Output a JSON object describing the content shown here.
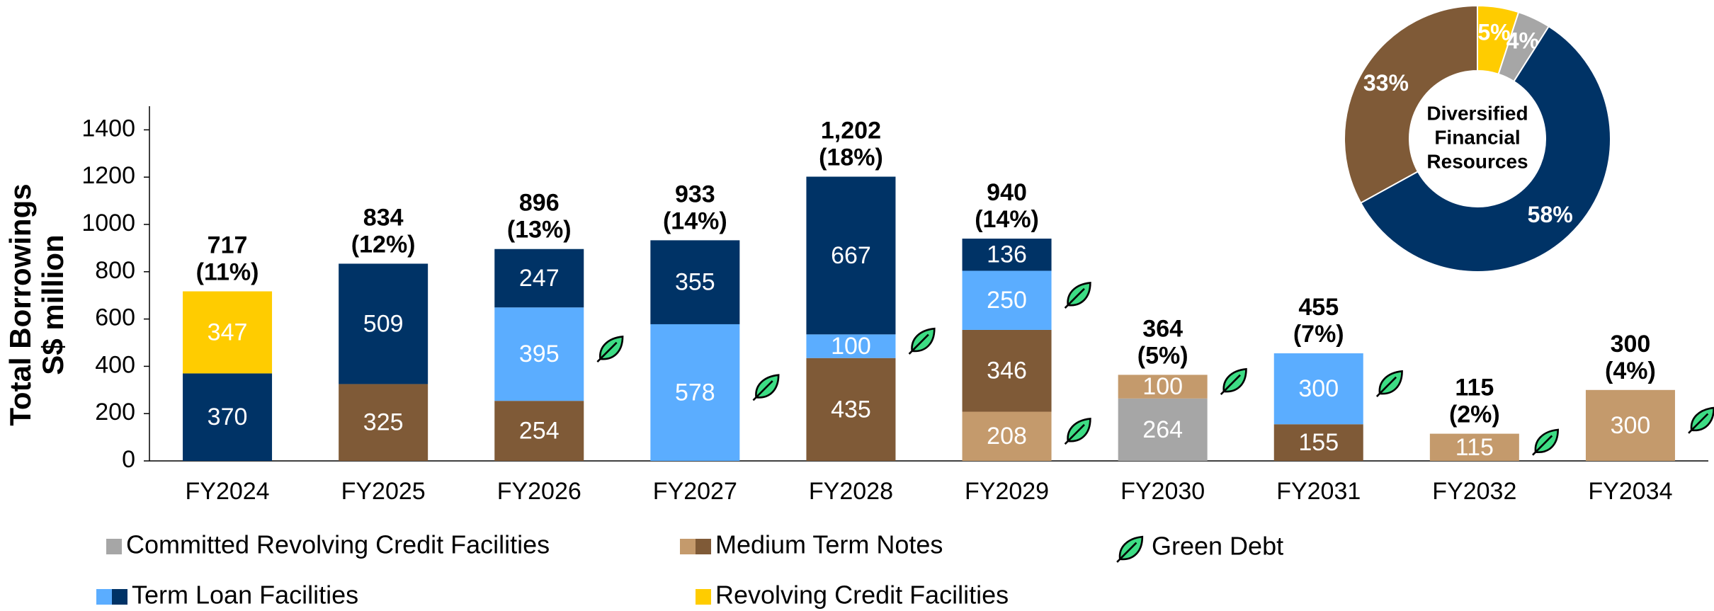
{
  "chart_data": [
    {
      "type": "stacked_bar",
      "ylabel": [
        "Total Borrowings",
        "S$ million"
      ],
      "categories": [
        "FY2024",
        "FY2025",
        "FY2026",
        "FY2027",
        "FY2028",
        "FY2029",
        "FY2030",
        "FY2031",
        "FY2032",
        "FY2034"
      ],
      "series": [
        {
          "name": "Committed Revolving Credit Facilities",
          "parts": [
            {
              "color": "#a6a6a6",
              "values": [
                null,
                null,
                null,
                null,
                null,
                null,
                264,
                null,
                null,
                null
              ],
              "green": [
                false,
                false,
                false,
                false,
                false,
                false,
                false,
                false,
                false,
                false
              ]
            }
          ]
        },
        {
          "name": "Medium Term Notes",
          "parts": [
            {
              "color": "#c49a6c",
              "values": [
                null,
                null,
                null,
                null,
                null,
                208,
                100,
                null,
                115,
                300
              ],
              "green": [
                false,
                false,
                false,
                false,
                false,
                true,
                true,
                false,
                true,
                true
              ]
            },
            {
              "color": "#7f5a37",
              "values": [
                null,
                325,
                254,
                null,
                435,
                346,
                null,
                155,
                null,
                null
              ],
              "green": [
                false,
                false,
                false,
                false,
                false,
                false,
                false,
                false,
                false,
                false
              ]
            }
          ]
        },
        {
          "name": "Term Loan Facilities",
          "parts": [
            {
              "color": "#5badff",
              "values": [
                null,
                null,
                395,
                578,
                100,
                250,
                null,
                300,
                null,
                null
              ],
              "green": [
                false,
                false,
                true,
                true,
                true,
                true,
                false,
                true,
                false,
                false
              ]
            },
            {
              "color": "#003366",
              "values": [
                370,
                509,
                247,
                355,
                667,
                136,
                null,
                null,
                null,
                null
              ],
              "green": [
                false,
                false,
                false,
                false,
                false,
                false,
                false,
                false,
                false,
                false
              ]
            }
          ]
        },
        {
          "name": "Revolving Credit Facilities",
          "parts": [
            {
              "color": "#ffcc00",
              "values": [
                347,
                null,
                null,
                null,
                null,
                null,
                null,
                null,
                null,
                null
              ],
              "green": [
                false,
                false,
                false,
                false,
                false,
                false,
                false,
                false,
                false,
                false
              ]
            }
          ]
        }
      ],
      "green_label": "Green Debt",
      "totals": [
        717,
        834,
        896,
        933,
        1202,
        940,
        364,
        455,
        115,
        300
      ],
      "total_labels": [
        "717",
        "834",
        "896",
        "933",
        "1,202",
        "940",
        "364",
        "455",
        "115",
        "300"
      ],
      "shares": [
        11,
        12,
        13,
        14,
        18,
        14,
        5,
        7,
        2,
        4
      ],
      "share_labels": [
        "(11%)",
        "(12%)",
        "(13%)",
        "(14%)",
        "(18%)",
        "(14%)",
        "(5%)",
        "(7%)",
        "(2%)",
        "(4%)"
      ],
      "ylim": [
        0,
        1500
      ],
      "yticks": [
        0,
        200,
        400,
        600,
        800,
        1000,
        1200,
        1400
      ]
    },
    {
      "type": "donut",
      "center_text": [
        "Diversified",
        "Financial",
        "Resources"
      ],
      "values": [
        5,
        4,
        58,
        33
      ],
      "value_labels": [
        "5%",
        "4%",
        "58%",
        "33%"
      ],
      "colors": [
        "#ffcc00",
        "#a6a6a6",
        "#003366",
        "#7f5a37"
      ]
    }
  ]
}
